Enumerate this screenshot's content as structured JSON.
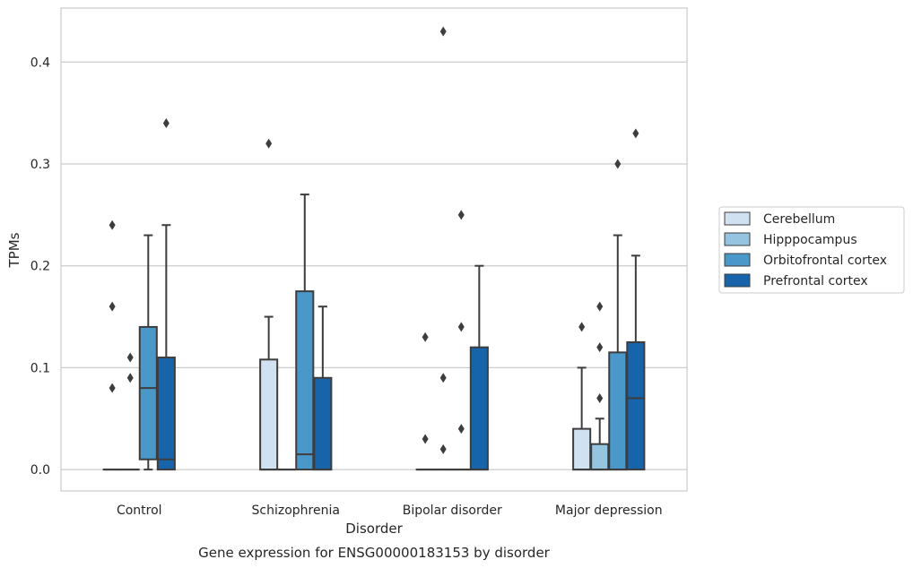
{
  "chart_data": {
    "type": "box",
    "xlabel": "Disorder",
    "ylabel": "TPMs",
    "caption": "Gene expression for ENSG00000183153 by disorder",
    "ylim": [
      -0.021,
      0.453
    ],
    "yticks": [
      0.0,
      0.1,
      0.2,
      0.3,
      0.4
    ],
    "ytick_labels": [
      "0.0",
      "0.1",
      "0.2",
      "0.3",
      "0.4"
    ],
    "grid": "horizontal",
    "legend_position": "right",
    "categories": [
      "Control",
      "Schizophrenia",
      "Bipolar disorder",
      "Major depression"
    ],
    "series": [
      {
        "name": "Cerebellum",
        "color": "#d0e1f2",
        "boxes": [
          {
            "q1": 0,
            "median": 0,
            "q3": 0,
            "whisker_low": 0,
            "whisker_high": 0,
            "outliers": [
              0.08,
              0.16,
              0.24
            ]
          },
          {
            "q1": 0,
            "median": 0,
            "q3": 0.108,
            "whisker_low": 0,
            "whisker_high": 0.15,
            "outliers": [
              0.32
            ]
          },
          {
            "q1": 0,
            "median": 0,
            "q3": 0,
            "whisker_low": 0,
            "whisker_high": 0,
            "outliers": [
              0.03,
              0.13
            ]
          },
          {
            "q1": 0,
            "median": 0,
            "q3": 0.04,
            "whisker_low": 0,
            "whisker_high": 0.1,
            "outliers": [
              0.14
            ]
          }
        ]
      },
      {
        "name": "Hipppocampus",
        "color": "#94c4df",
        "boxes": [
          {
            "q1": 0,
            "median": 0,
            "q3": 0,
            "whisker_low": 0,
            "whisker_high": 0,
            "outliers": [
              0.09,
              0.11
            ]
          },
          {
            "q1": 0,
            "median": 0,
            "q3": 0,
            "whisker_low": 0,
            "whisker_high": 0,
            "outliers": []
          },
          {
            "q1": 0,
            "median": 0,
            "q3": 0,
            "whisker_low": 0,
            "whisker_high": 0,
            "outliers": [
              0.02,
              0.09,
              0.43
            ]
          },
          {
            "q1": 0,
            "median": 0,
            "q3": 0.025,
            "whisker_low": 0,
            "whisker_high": 0.05,
            "outliers": [
              0.07,
              0.12,
              0.16
            ]
          }
        ]
      },
      {
        "name": "Orbitofrontal cortex",
        "color": "#4a98c9",
        "boxes": [
          {
            "q1": 0.01,
            "median": 0.08,
            "q3": 0.14,
            "whisker_low": 0,
            "whisker_high": 0.23,
            "outliers": []
          },
          {
            "q1": 0,
            "median": 0.015,
            "q3": 0.175,
            "whisker_low": 0,
            "whisker_high": 0.27,
            "outliers": []
          },
          {
            "q1": 0,
            "median": 0,
            "q3": 0,
            "whisker_low": 0,
            "whisker_high": 0,
            "outliers": [
              0.04,
              0.14,
              0.25
            ]
          },
          {
            "q1": 0,
            "median": 0,
            "q3": 0.115,
            "whisker_low": 0,
            "whisker_high": 0.23,
            "outliers": [
              0.3
            ]
          }
        ]
      },
      {
        "name": "Prefrontal cortex",
        "color": "#1764ab",
        "boxes": [
          {
            "q1": 0,
            "median": 0.01,
            "q3": 0.11,
            "whisker_low": 0,
            "whisker_high": 0.24,
            "outliers": [
              0.34
            ]
          },
          {
            "q1": 0,
            "median": 0,
            "q3": 0.09,
            "whisker_low": 0,
            "whisker_high": 0.16,
            "outliers": []
          },
          {
            "q1": 0,
            "median": 0,
            "q3": 0.12,
            "whisker_low": 0,
            "whisker_high": 0.2,
            "outliers": []
          },
          {
            "q1": 0,
            "median": 0.07,
            "q3": 0.125,
            "whisker_low": 0,
            "whisker_high": 0.21,
            "outliers": [
              0.33
            ]
          }
        ]
      }
    ]
  }
}
